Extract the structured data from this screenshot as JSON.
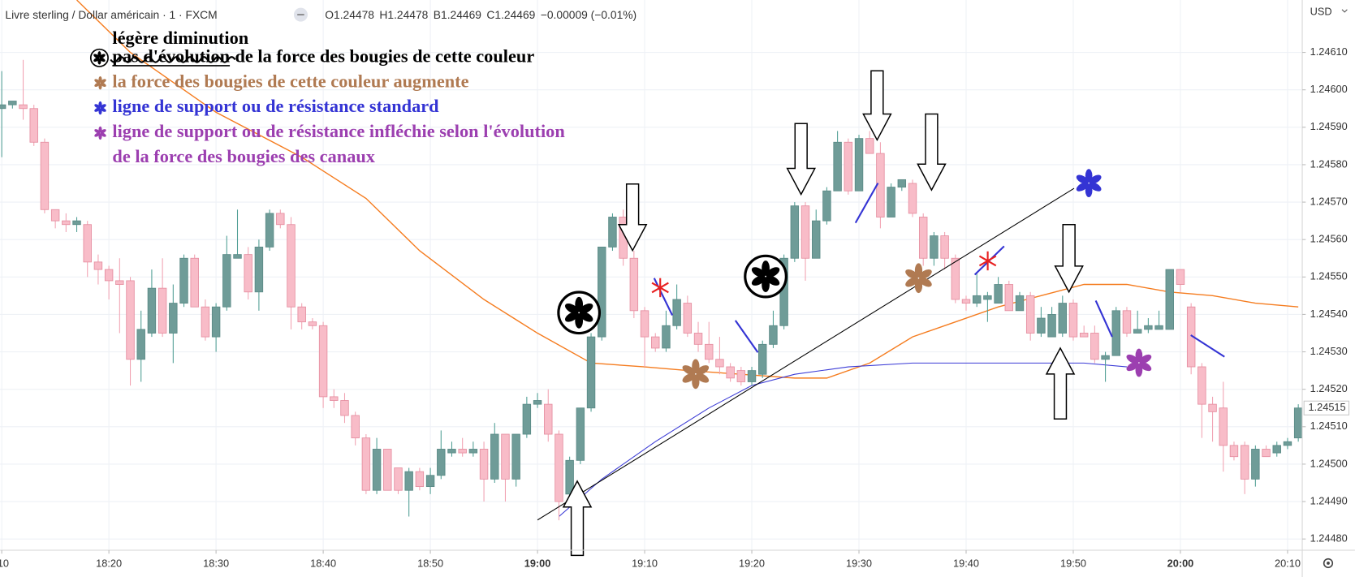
{
  "chart_data": {
    "type": "candlestick",
    "header": {
      "symbol": "Livre sterling / Dollar américain · 1 · FXCM",
      "ohlc": [
        {
          "label": "O",
          "value": 1.24478
        },
        {
          "label": "H",
          "value": 1.24478
        },
        {
          "label": "B",
          "value": 1.24469
        },
        {
          "label": "C",
          "value": 1.24469
        }
      ],
      "change": "−0.00009 (−0.01%)"
    },
    "currency": "USD",
    "notes": {
      "decrease": "légère diminution",
      "struck": "pas d'évolution",
      "same_strength": "de la force des bougies de cette couleur",
      "stronger": "la force des bougies de cette couleur augmente",
      "standard": "ligne de support ou de résistance standard",
      "bent_1": "ligne de support ou de résistance infléchie selon l'évolution",
      "bent_2": "de la force des bougies des canaux"
    },
    "up_color": "#6f9c98",
    "down_color": "#f8bcc8",
    "x": [
      1090,
      1091,
      1092,
      1093,
      1094,
      1095,
      1096,
      1097,
      1098,
      1099,
      1100,
      1101,
      1102,
      1103,
      1104,
      1105,
      1106,
      1107,
      1108,
      1109,
      1110,
      1111,
      1112,
      1113,
      1114,
      1115,
      1116,
      1117,
      1118,
      1119,
      1120,
      1121,
      1122,
      1123,
      1124,
      1125,
      1126,
      1127,
      1128,
      1129,
      1130,
      1131,
      1132,
      1133,
      1134,
      1135,
      1136,
      1137,
      1138,
      1139,
      1140,
      1141,
      1142,
      1143,
      1144,
      1145,
      1146,
      1147,
      1148,
      1149,
      1150,
      1151,
      1152,
      1153,
      1154,
      1155,
      1156,
      1157,
      1158,
      1159,
      1160,
      1161,
      1162,
      1163,
      1164,
      1165,
      1166,
      1167,
      1168,
      1169,
      1170,
      1171,
      1172,
      1173,
      1174,
      1175,
      1176,
      1177,
      1178,
      1179,
      1180,
      1181,
      1182,
      1183,
      1184,
      1185,
      1186,
      1187,
      1188,
      1189,
      1190,
      1191,
      1192,
      1193,
      1194,
      1195,
      1196,
      1197,
      1198,
      1199,
      1200,
      1201,
      1202,
      1203,
      1204,
      1205,
      1206,
      1207,
      1208,
      1209,
      1210,
      1211
    ],
    "open": [
      1.24595,
      1.24596,
      1.24596,
      1.24595,
      1.24586,
      1.24568,
      1.24565,
      1.24564,
      1.24564,
      1.24554,
      1.24552,
      1.24549,
      1.24549,
      1.24528,
      1.24535,
      1.24547,
      1.24535,
      1.24543,
      1.24555,
      1.24542,
      1.24534,
      1.24542,
      1.24555,
      1.24556,
      1.24546,
      1.24558,
      1.24567,
      1.24564,
      1.24542,
      1.24538,
      1.24537,
      1.24518,
      1.24517,
      1.24513,
      1.24507,
      1.24493,
      1.24504,
      1.24499,
      1.24493,
      1.24498,
      1.24494,
      1.24497,
      1.24503,
      1.24504,
      1.24503,
      1.24504,
      1.24496,
      1.24508,
      1.24496,
      1.24508,
      1.24516,
      1.24516,
      1.24508,
      1.24492,
      1.24501,
      1.24515,
      1.24534,
      1.24558,
      1.24566,
      1.24555,
      1.24541,
      1.24534,
      1.24531,
      1.24537,
      1.24543,
      1.24535,
      1.24532,
      1.24528,
      1.24526,
      1.24525,
      1.24522,
      1.24524,
      1.24532,
      1.24537,
      1.24555,
      1.24569,
      1.24555,
      1.24565,
      1.24573,
      1.24586,
      1.24573,
      1.24587,
      1.24583,
      1.24566,
      1.24574,
      1.24575,
      1.24566,
      1.24555,
      1.24561,
      1.24555,
      1.24544,
      1.24543,
      1.24544,
      1.24543,
      1.24548,
      1.24541,
      1.24545,
      1.24535,
      1.24534,
      1.24535,
      1.24543,
      1.24535,
      1.24535,
      1.24528,
      1.24529,
      1.24541,
      1.24535,
      1.24536,
      1.24536,
      1.24536,
      1.24552,
      1.24542,
      1.24526,
      1.24516,
      1.24515,
      1.24505,
      1.24505,
      1.24496,
      1.24504,
      1.24503,
      1.24505,
      1.24507
    ],
    "high": [
      1.24605,
      1.24597,
      1.24608,
      1.24596,
      1.24587,
      1.24568,
      1.24567,
      1.24566,
      1.24565,
      1.24556,
      1.24553,
      1.24555,
      1.2455,
      1.24541,
      1.24552,
      1.24555,
      1.24548,
      1.24556,
      1.24556,
      1.24544,
      1.24543,
      1.24561,
      1.24568,
      1.24558,
      1.2456,
      1.24568,
      1.24568,
      1.24566,
      1.24543,
      1.24539,
      1.24538,
      1.2452,
      1.24519,
      1.24514,
      1.24508,
      1.24507,
      1.24504,
      1.24499,
      1.24499,
      1.24499,
      1.24499,
      1.24509,
      1.24506,
      1.24507,
      1.24506,
      1.24506,
      1.24511,
      1.24508,
      1.24508,
      1.24518,
      1.24519,
      1.2452,
      1.24509,
      1.24502,
      1.24515,
      1.24535,
      1.24558,
      1.24567,
      1.24568,
      1.24557,
      1.24542,
      1.24535,
      1.24541,
      1.24548,
      1.24545,
      1.24538,
      1.24538,
      1.24534,
      1.24527,
      1.24526,
      1.24526,
      1.24533,
      1.24541,
      1.24556,
      1.2457,
      1.2457,
      1.24568,
      1.24574,
      1.24589,
      1.24587,
      1.24588,
      1.24589,
      1.24586,
      1.24575,
      1.24576,
      1.24576,
      1.24567,
      1.24562,
      1.24562,
      1.24556,
      1.24545,
      1.24551,
      1.24546,
      1.2455,
      1.24549,
      1.24546,
      1.24546,
      1.24542,
      1.24542,
      1.24545,
      1.24544,
      1.24537,
      1.24537,
      1.2453,
      1.24542,
      1.24542,
      1.24541,
      1.24539,
      1.24541,
      1.24552,
      1.24552,
      1.24543,
      1.24527,
      1.24518,
      1.24522,
      1.24506,
      1.24506,
      1.24505,
      1.24505,
      1.24506,
      1.24507,
      1.24516
    ],
    "low": [
      1.24582,
      1.24595,
      1.24592,
      1.24585,
      1.24567,
      1.24563,
      1.24562,
      1.24562,
      1.2455,
      1.24548,
      1.24544,
      1.24535,
      1.24521,
      1.24522,
      1.24534,
      1.24534,
      1.24527,
      1.24542,
      1.24542,
      1.24533,
      1.2453,
      1.24541,
      1.24555,
      1.24544,
      1.24541,
      1.24557,
      1.24563,
      1.24536,
      1.24536,
      1.24536,
      1.24515,
      1.24515,
      1.24511,
      1.24505,
      1.24492,
      1.24492,
      1.24493,
      1.24492,
      1.24486,
      1.24493,
      1.24492,
      1.24496,
      1.24502,
      1.24502,
      1.24502,
      1.2449,
      1.24495,
      1.2449,
      1.24494,
      1.24507,
      1.24515,
      1.24506,
      1.24485,
      1.24491,
      1.245,
      1.24514,
      1.24533,
      1.24557,
      1.24553,
      1.24539,
      1.24526,
      1.2453,
      1.2453,
      1.24536,
      1.24534,
      1.2453,
      1.24527,
      1.24524,
      1.24522,
      1.24521,
      1.24521,
      1.24523,
      1.24531,
      1.24536,
      1.24554,
      1.24549,
      1.24555,
      1.24564,
      1.24573,
      1.24572,
      1.24573,
      1.24583,
      1.24563,
      1.24566,
      1.24573,
      1.24566,
      1.24553,
      1.24553,
      1.24552,
      1.24543,
      1.24541,
      1.24542,
      1.24538,
      1.24543,
      1.24541,
      1.24541,
      1.24533,
      1.24534,
      1.24534,
      1.24534,
      1.24533,
      1.24534,
      1.24527,
      1.24522,
      1.24529,
      1.24534,
      1.24535,
      1.24535,
      1.24536,
      1.24536,
      1.24546,
      1.24524,
      1.24507,
      1.24506,
      1.24498,
      1.24501,
      1.24492,
      1.24494,
      1.24502,
      1.24502,
      1.24504,
      1.24506
    ],
    "close": [
      1.24596,
      1.24597,
      1.24595,
      1.24586,
      1.24568,
      1.24565,
      1.24564,
      1.24565,
      1.24554,
      1.24552,
      1.24549,
      1.24548,
      1.24528,
      1.24536,
      1.24547,
      1.24535,
      1.24543,
      1.24555,
      1.24542,
      1.24534,
      1.24542,
      1.24556,
      1.24556,
      1.24546,
      1.24558,
      1.24567,
      1.24564,
      1.24542,
      1.24538,
      1.24537,
      1.24518,
      1.24517,
      1.24513,
      1.24507,
      1.24493,
      1.24504,
      1.24493,
      1.24493,
      1.24498,
      1.24494,
      1.24497,
      1.24504,
      1.24504,
      1.24503,
      1.24504,
      1.24496,
      1.24508,
      1.24496,
      1.24508,
      1.24516,
      1.24517,
      1.24508,
      1.2449,
      1.24501,
      1.24515,
      1.24534,
      1.24558,
      1.24566,
      1.24555,
      1.24541,
      1.24534,
      1.24531,
      1.24537,
      1.24544,
      1.24535,
      1.24532,
      1.24528,
      1.24526,
      1.24523,
      1.24522,
      1.24525,
      1.24532,
      1.24537,
      1.24555,
      1.24569,
      1.24555,
      1.24565,
      1.24573,
      1.24586,
      1.24573,
      1.24587,
      1.24583,
      1.24566,
      1.24574,
      1.24576,
      1.24567,
      1.24555,
      1.24561,
      1.24555,
      1.24544,
      1.24543,
      1.24545,
      1.24545,
      1.24548,
      1.24541,
      1.24545,
      1.24535,
      1.24539,
      1.2454,
      1.24543,
      1.24534,
      1.24534,
      1.24528,
      1.24529,
      1.24541,
      1.24535,
      1.24536,
      1.24537,
      1.24537,
      1.24552,
      1.24548,
      1.24526,
      1.24516,
      1.24514,
      1.24505,
      1.24502,
      1.24496,
      1.24504,
      1.24502,
      1.24505,
      1.24506,
      1.24515
    ],
    "overlays": [
      {
        "color": "#f57c1f",
        "x": [
          1097,
          1102,
          1110,
          1118,
          1124,
          1129,
          1135,
          1140,
          1145,
          1150,
          1154,
          1159,
          1164,
          1167,
          1171,
          1175,
          1179,
          1183,
          1187,
          1191,
          1195,
          1199,
          1203,
          1207,
          1211
        ],
        "values": [
          1.24624,
          1.2461,
          1.24594,
          1.24582,
          1.24571,
          1.24557,
          1.24544,
          1.24535,
          1.24527,
          1.24526,
          1.24525,
          1.24524,
          1.24523,
          1.24523,
          1.24527,
          1.24534,
          1.24538,
          1.24542,
          1.24545,
          1.24548,
          1.24548,
          1.24546,
          1.24545,
          1.24543,
          1.24542
        ]
      },
      {
        "color": "#3b3bd6",
        "x": [
          1142,
          1146,
          1151,
          1156,
          1160,
          1164,
          1169,
          1175,
          1181,
          1187,
          1191,
          1195
        ],
        "values": [
          1.24486,
          1.24496,
          1.24506,
          1.24515,
          1.24521,
          1.24524,
          1.24526,
          1.24527,
          1.24527,
          1.24527,
          1.24527,
          1.24526
        ]
      }
    ],
    "xlim": [
      1089.84,
      1211.29
    ],
    "ylim": [
      1.24477,
      1.24624
    ],
    "xticks": [
      {
        "value": 1090,
        "label": ":10"
      },
      {
        "value": 1100,
        "label": "18:20"
      },
      {
        "value": 1110,
        "label": "18:30"
      },
      {
        "value": 1120,
        "label": "18:40"
      },
      {
        "value": 1130,
        "label": "18:50"
      },
      {
        "value": 1140,
        "label": "19:00",
        "bold": true
      },
      {
        "value": 1150,
        "label": "19:10"
      },
      {
        "value": 1160,
        "label": "19:20"
      },
      {
        "value": 1170,
        "label": "19:30"
      },
      {
        "value": 1180,
        "label": "19:40"
      },
      {
        "value": 1190,
        "label": "19:50"
      },
      {
        "value": 1200,
        "label": "20:00",
        "bold": true
      },
      {
        "value": 1210,
        "label": "20:10"
      }
    ],
    "yticks": [
      {
        "value": 1.2448,
        "label": "1.24480"
      },
      {
        "value": 1.2449,
        "label": "1.24490"
      },
      {
        "value": 1.245,
        "label": "1.24500"
      },
      {
        "value": 1.2451,
        "label": "1.24510"
      },
      {
        "value": 1.2452,
        "label": "1.24520"
      },
      {
        "value": 1.2453,
        "label": "1.24530"
      },
      {
        "value": 1.2454,
        "label": "1.24540"
      },
      {
        "value": 1.2455,
        "label": "1.24550"
      },
      {
        "value": 1.2456,
        "label": "1.24560"
      },
      {
        "value": 1.2457,
        "label": "1.24570"
      },
      {
        "value": 1.2458,
        "label": "1.24580"
      },
      {
        "value": 1.2459,
        "label": "1.24590"
      },
      {
        "value": 1.246,
        "label": "1.24600"
      },
      {
        "value": 1.2461,
        "label": "1.24610"
      }
    ],
    "last_price": {
      "value": 1.24515,
      "label": "1.24515"
    },
    "grid": true
  }
}
